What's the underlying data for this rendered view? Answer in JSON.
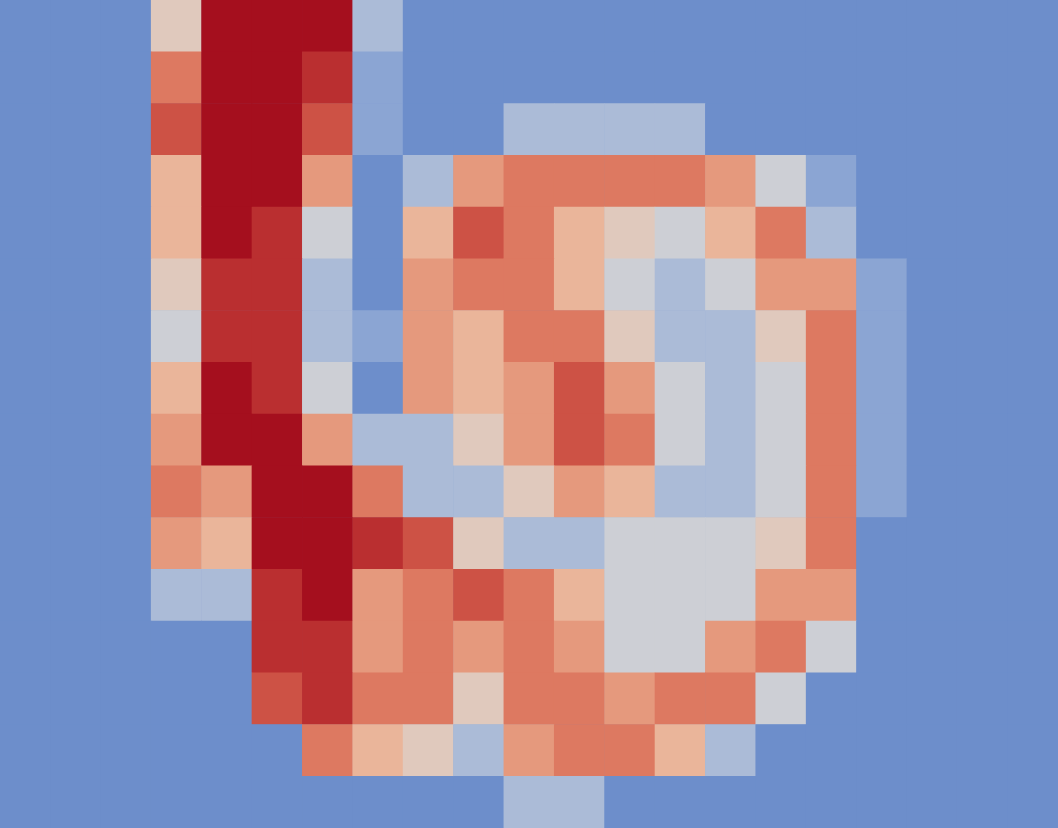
{
  "chart_data": {
    "type": "heatmap",
    "tick_labels": false,
    "zlim": [
      0,
      10
    ],
    "cells": [
      [
        0,
        0,
        0,
        4,
        10,
        10,
        10,
        2,
        0,
        0,
        0,
        0,
        0,
        0,
        0,
        0,
        0,
        0,
        0,
        0,
        0
      ],
      [
        0,
        0,
        0,
        7,
        10,
        10,
        9,
        1,
        0,
        0,
        0,
        0,
        0,
        0,
        0,
        0,
        0,
        0,
        0,
        0,
        0
      ],
      [
        0,
        0,
        0,
        8,
        10,
        10,
        8,
        1,
        0,
        0,
        2,
        2,
        2,
        2,
        0,
        0,
        0,
        0,
        0,
        0,
        0
      ],
      [
        0,
        0,
        0,
        5,
        10,
        10,
        6,
        0,
        2,
        6,
        7,
        7,
        7,
        7,
        6,
        3,
        1,
        0,
        0,
        0,
        0
      ],
      [
        0,
        0,
        0,
        5,
        10,
        9,
        3,
        0,
        5,
        8,
        7,
        5,
        4,
        3,
        5,
        7,
        2,
        0,
        0,
        0,
        0
      ],
      [
        0,
        0,
        0,
        4,
        9,
        9,
        2,
        0,
        6,
        7,
        7,
        5,
        3,
        2,
        3,
        6,
        6,
        1,
        0,
        0,
        0
      ],
      [
        0,
        0,
        0,
        3,
        9,
        9,
        2,
        1,
        6,
        5,
        7,
        7,
        4,
        2,
        2,
        4,
        7,
        1,
        0,
        0,
        0
      ],
      [
        0,
        0,
        0,
        5,
        10,
        9,
        3,
        0,
        6,
        5,
        6,
        8,
        6,
        3,
        2,
        3,
        7,
        1,
        0,
        0,
        0
      ],
      [
        0,
        0,
        0,
        6,
        10,
        10,
        6,
        2,
        2,
        4,
        6,
        8,
        7,
        3,
        2,
        3,
        7,
        1,
        0,
        0,
        0
      ],
      [
        0,
        0,
        0,
        7,
        6,
        10,
        10,
        7,
        2,
        2,
        4,
        6,
        5,
        2,
        2,
        3,
        7,
        1,
        0,
        0,
        0
      ],
      [
        0,
        0,
        0,
        6,
        5,
        10,
        10,
        9,
        8,
        4,
        2,
        2,
        3,
        3,
        3,
        4,
        7,
        0,
        0,
        0,
        0
      ],
      [
        0,
        0,
        0,
        2,
        2,
        9,
        10,
        6,
        7,
        8,
        7,
        5,
        3,
        3,
        3,
        6,
        6,
        0,
        0,
        0,
        0
      ],
      [
        0,
        0,
        0,
        0,
        0,
        9,
        9,
        6,
        7,
        6,
        7,
        6,
        3,
        3,
        6,
        7,
        3,
        0,
        0,
        0,
        0
      ],
      [
        0,
        0,
        0,
        0,
        0,
        8,
        9,
        7,
        7,
        4,
        7,
        7,
        6,
        7,
        7,
        3,
        0,
        0,
        0,
        0,
        0
      ],
      [
        0,
        0,
        0,
        0,
        0,
        0,
        7,
        5,
        4,
        2,
        6,
        7,
        7,
        5,
        2,
        0,
        0,
        0,
        0,
        0,
        0
      ],
      [
        0,
        0,
        0,
        0,
        0,
        0,
        0,
        0,
        0,
        0,
        2,
        2,
        0,
        0,
        0,
        0,
        0,
        0,
        0,
        0,
        0
      ]
    ]
  }
}
